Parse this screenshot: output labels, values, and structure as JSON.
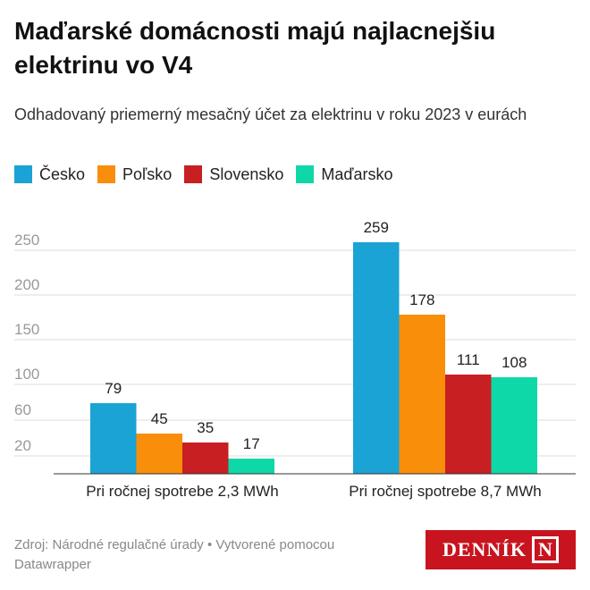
{
  "header": {
    "title": "Maďarské domácnosti majú najlacnejšiu elektrinu vo V4",
    "subtitle": "Odhadovaný priemerný mesačný účet za elektrinu v roku 2023 v eurách"
  },
  "footer": {
    "source": "Zdroj: Národné regulačné úrady • Vytvorené pomocou Datawrapper",
    "logo_text": "DENNÍK",
    "logo_mark": "N"
  },
  "colors": {
    "cesko": "#1aa3d4",
    "polsko": "#f98e0b",
    "slovensko": "#c81f22",
    "madarsko": "#0ed8a8",
    "logo": "#c8141e"
  },
  "chart_data": {
    "type": "bar",
    "title": "Maďarské domácnosti majú najlacnejšiu elektrinu vo V4",
    "subtitle": "Odhadovaný priemerný mesačný účet za elektrinu v roku 2023 v eurách",
    "categories": [
      "Pri ročnej spotrebe 2,3 MWh",
      "Pri ročnej spotrebe 8,7 MWh"
    ],
    "series": [
      {
        "name": "Česko",
        "color": "#1aa3d4",
        "values": [
          79,
          259
        ]
      },
      {
        "name": "Poľsko",
        "color": "#f98e0b",
        "values": [
          45,
          178
        ]
      },
      {
        "name": "Slovensko",
        "color": "#c81f22",
        "values": [
          35,
          111
        ]
      },
      {
        "name": "Maďarsko",
        "color": "#0ed8a8",
        "values": [
          17,
          108
        ]
      }
    ],
    "yticks": [
      20,
      60,
      100,
      150,
      200,
      250
    ],
    "ylim": [
      0,
      260
    ],
    "grid": true,
    "legend": "top-left",
    "data_labels": true
  }
}
